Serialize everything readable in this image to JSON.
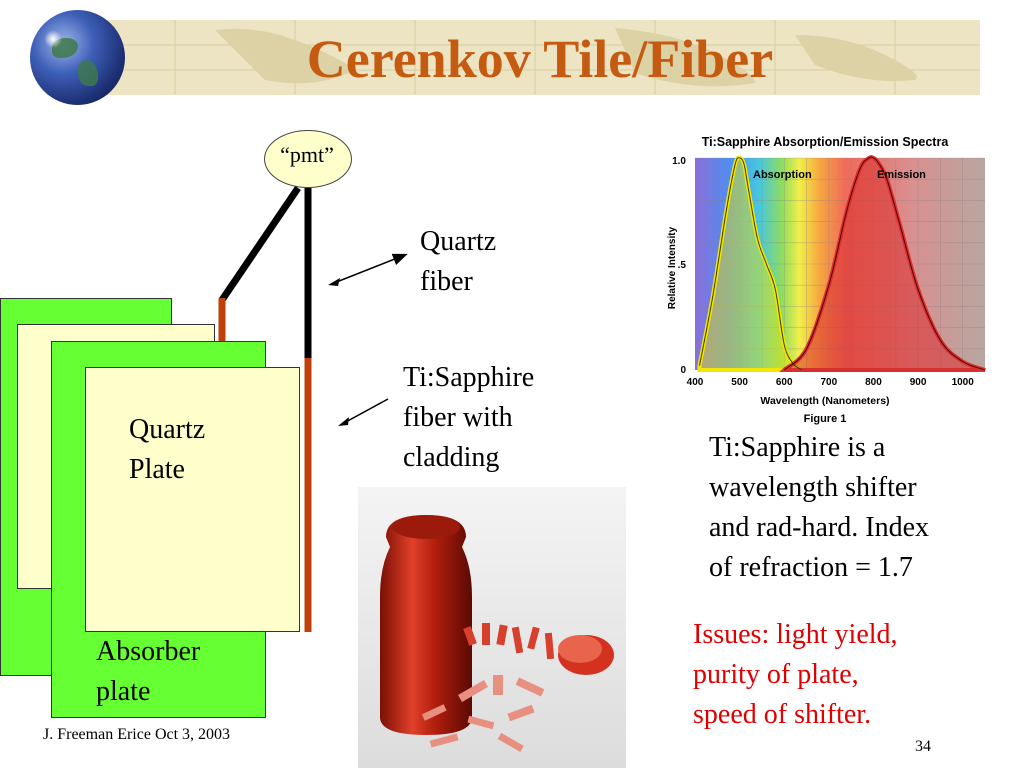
{
  "slide": {
    "title": "Cerenkov Tile/Fiber",
    "pmt_label": "“pmt”",
    "quartz_fiber_label": [
      "Quartz",
      "fiber"
    ],
    "sapphire_fiber_label": [
      "Ti:Sapphire",
      "fiber with",
      "cladding"
    ],
    "quartz_plate_label": [
      "Quartz",
      "Plate"
    ],
    "absorber_label": [
      "Absorber",
      "plate"
    ],
    "description": [
      "Ti:Sapphire is a",
      "wavelength shifter",
      "and rad-hard. Index",
      "of refraction = 1.7"
    ],
    "issues": [
      "Issues:  light yield,",
      "purity of plate,",
      "speed of shifter."
    ],
    "footer_left": "J. Freeman   Erice  Oct 3, 2003",
    "page_number": "34"
  },
  "colors": {
    "title": "#c55a11",
    "absorber": "#66ff33",
    "quartz": "#ffffcc",
    "sapphire_fiber": "#c0400a",
    "issues": "#e00000"
  },
  "figure": {
    "title": "Ti:Sapphire Absorption/Emission Spectra",
    "ylabel": "Relative Intensity",
    "xlabel": "Wavelength (Nanometers)",
    "caption": "Figure 1",
    "y_ticks": [
      "0",
      ".5",
      "1.0"
    ],
    "x_ticks": [
      "400",
      "500",
      "600",
      "700",
      "800",
      "900",
      "1000"
    ],
    "absorption_label": "Absorption",
    "emission_label": "Emission"
  },
  "chart_data": {
    "type": "area",
    "title": "Ti:Sapphire Absorption/Emission Spectra",
    "xlabel": "Wavelength (Nanometers)",
    "ylabel": "Relative Intensity",
    "xlim": [
      400,
      1050
    ],
    "ylim": [
      0,
      1.0
    ],
    "series": [
      {
        "name": "Absorption",
        "x": [
          410,
          440,
          470,
          490,
          500,
          510,
          520,
          540,
          560,
          580,
          600,
          620,
          640
        ],
        "y": [
          0.02,
          0.35,
          0.75,
          0.97,
          1.0,
          0.97,
          0.85,
          0.62,
          0.5,
          0.38,
          0.12,
          0.03,
          0.0
        ],
        "color": "#f2e600"
      },
      {
        "name": "Emission",
        "x": [
          600,
          650,
          700,
          740,
          770,
          790,
          800,
          810,
          830,
          860,
          900,
          950,
          1000,
          1050
        ],
        "y": [
          0.0,
          0.1,
          0.4,
          0.75,
          0.95,
          1.0,
          1.0,
          0.98,
          0.9,
          0.68,
          0.38,
          0.14,
          0.04,
          0.0
        ],
        "color": "#d83030"
      }
    ]
  }
}
